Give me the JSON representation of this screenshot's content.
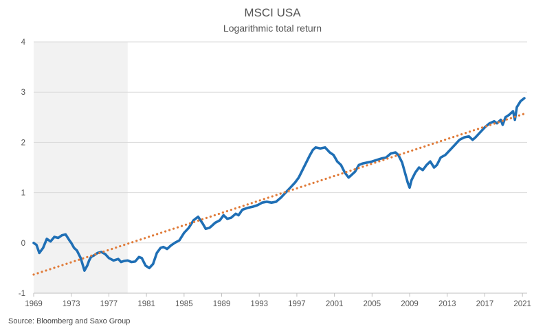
{
  "chart_data": {
    "type": "line",
    "title": "MSCI USA",
    "subtitle": "Logarithmic total return",
    "source": "Source: Bloomberg and Saxo Group",
    "xlabel": "",
    "ylabel": "",
    "xlim": [
      1969,
      2021.5
    ],
    "ylim": [
      -1,
      4
    ],
    "x_ticks": [
      1969,
      1973,
      1977,
      1981,
      1985,
      1989,
      1993,
      1997,
      2001,
      2005,
      2009,
      2013,
      2017,
      2021
    ],
    "x_tick_labels": [
      "1969",
      "1973",
      "1977",
      "1981",
      "1985",
      "1989",
      "1993",
      "1997",
      "2001",
      "2005",
      "2009",
      "2013",
      "2017",
      "2021"
    ],
    "y_ticks": [
      -1,
      0,
      1,
      2,
      3,
      4
    ],
    "y_tick_labels": [
      "-1",
      "0",
      "1",
      "2",
      "3",
      "4"
    ],
    "grid": "horizontal",
    "shaded_period": [
      1969,
      1979
    ],
    "colors": {
      "series": "#1f6fb5",
      "trend": "#e07b39",
      "shade": "#f2f2f2",
      "grid": "#d9d9d9"
    },
    "series": [
      {
        "style": "solid",
        "x": [
          1969.0,
          1969.3,
          1969.6,
          1970.0,
          1970.4,
          1970.8,
          1971.2,
          1971.6,
          1972.0,
          1972.4,
          1972.8,
          1973.0,
          1973.3,
          1973.6,
          1974.0,
          1974.4,
          1974.7,
          1974.9,
          1975.1,
          1975.4,
          1975.8,
          1976.2,
          1976.6,
          1977.0,
          1977.5,
          1978.0,
          1978.3,
          1978.6,
          1979.0,
          1979.4,
          1979.8,
          1980.2,
          1980.5,
          1980.9,
          1981.3,
          1981.7,
          1982.1,
          1982.5,
          1982.8,
          1983.2,
          1983.6,
          1984.0,
          1984.5,
          1985.0,
          1985.5,
          1986.0,
          1986.5,
          1987.0,
          1987.3,
          1987.7,
          1987.9,
          1988.3,
          1988.8,
          1989.2,
          1989.6,
          1990.0,
          1990.5,
          1990.8,
          1991.2,
          1991.8,
          1992.3,
          1992.8,
          1993.3,
          1993.8,
          1994.3,
          1994.8,
          1995.3,
          1995.8,
          1996.3,
          1996.8,
          1997.2,
          1997.6,
          1998.0,
          1998.4,
          1998.7,
          1999.0,
          1999.5,
          2000.0,
          2000.5,
          2000.9,
          2001.3,
          2001.7,
          2002.1,
          2002.5,
          2002.8,
          2003.2,
          2003.6,
          2004.0,
          2004.5,
          2005.0,
          2005.5,
          2006.0,
          2006.5,
          2007.0,
          2007.5,
          2007.8,
          2008.2,
          2008.5,
          2008.8,
          2009.0,
          2009.2,
          2009.6,
          2010.0,
          2010.4,
          2010.8,
          2011.2,
          2011.6,
          2011.9,
          2012.3,
          2012.8,
          2013.3,
          2013.8,
          2014.3,
          2014.8,
          2015.3,
          2015.7,
          2016.0,
          2016.5,
          2017.0,
          2017.5,
          2018.0,
          2018.3,
          2018.7,
          2018.9,
          2019.2,
          2019.6,
          2020.0,
          2020.2,
          2020.4,
          2020.8,
          2021.2
        ],
        "y": [
          0.0,
          -0.04,
          -0.2,
          -0.1,
          0.08,
          0.03,
          0.12,
          0.1,
          0.15,
          0.17,
          0.05,
          0.0,
          -0.1,
          -0.15,
          -0.3,
          -0.55,
          -0.45,
          -0.35,
          -0.28,
          -0.25,
          -0.2,
          -0.18,
          -0.22,
          -0.3,
          -0.35,
          -0.32,
          -0.38,
          -0.36,
          -0.35,
          -0.38,
          -0.37,
          -0.28,
          -0.3,
          -0.45,
          -0.5,
          -0.42,
          -0.2,
          -0.1,
          -0.08,
          -0.12,
          -0.05,
          0.0,
          0.05,
          0.2,
          0.3,
          0.45,
          0.52,
          0.38,
          0.28,
          0.3,
          0.33,
          0.4,
          0.45,
          0.55,
          0.48,
          0.5,
          0.58,
          0.55,
          0.66,
          0.7,
          0.72,
          0.75,
          0.8,
          0.82,
          0.8,
          0.82,
          0.9,
          1.0,
          1.1,
          1.2,
          1.3,
          1.45,
          1.6,
          1.75,
          1.85,
          1.9,
          1.88,
          1.9,
          1.8,
          1.75,
          1.62,
          1.55,
          1.4,
          1.3,
          1.35,
          1.42,
          1.55,
          1.58,
          1.6,
          1.62,
          1.65,
          1.68,
          1.7,
          1.78,
          1.8,
          1.75,
          1.6,
          1.4,
          1.2,
          1.1,
          1.25,
          1.4,
          1.5,
          1.45,
          1.55,
          1.62,
          1.5,
          1.55,
          1.7,
          1.75,
          1.85,
          1.95,
          2.05,
          2.1,
          2.12,
          2.05,
          2.1,
          2.2,
          2.3,
          2.38,
          2.42,
          2.38,
          2.45,
          2.35,
          2.5,
          2.55,
          2.62,
          2.45,
          2.7,
          2.82,
          2.88
        ]
      },
      {
        "style": "dotted",
        "x": [
          1969,
          2021.2
        ],
        "y": [
          -0.63,
          2.57
        ]
      }
    ]
  }
}
